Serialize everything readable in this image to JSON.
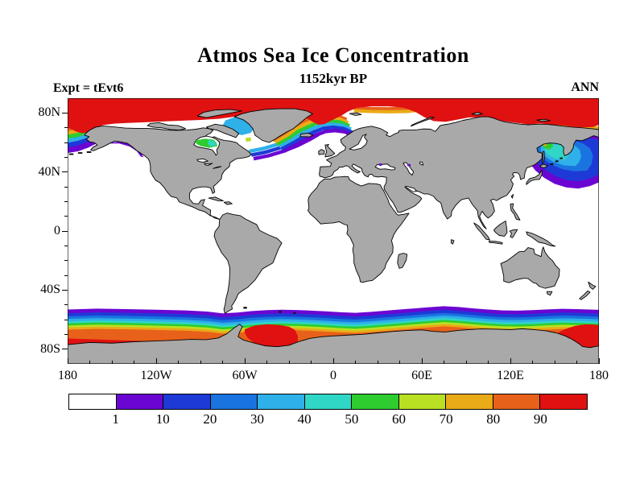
{
  "figure": {
    "title": "Atmos Sea Ice Concentration",
    "subtitle": "1152kyr BP",
    "experiment_label": "Expt = tEvt6",
    "season_label": "ANN"
  },
  "colors": {
    "land": "#a9a9a9",
    "ocean": "#ffffff",
    "coastline": "#000000",
    "text": "#000000"
  },
  "chart_data": {
    "type": "heatmap",
    "title": "Atmos Sea Ice Concentration",
    "subtitle": "1152kyr BP",
    "annotations": [
      "Expt = tEvt6",
      "ANN"
    ],
    "map": {
      "projection": "equirectangular",
      "lon_range": [
        -180,
        180
      ],
      "lat_range": [
        -90,
        90
      ]
    },
    "x_axis": {
      "tick_labels": [
        "180",
        "120W",
        "60W",
        "0",
        "60E",
        "120E",
        "180"
      ],
      "tick_lons": [
        -180,
        -120,
        -60,
        0,
        60,
        120,
        180
      ],
      "minor_tick_interval_deg": 15
    },
    "y_axis": {
      "tick_labels": [
        "80N",
        "40N",
        "0",
        "40S",
        "80S"
      ],
      "tick_lats": [
        80,
        40,
        0,
        -40,
        -80
      ],
      "minor_tick_interval_deg": 10
    },
    "colorbar": {
      "levels": [
        1,
        10,
        20,
        30,
        40,
        50,
        60,
        70,
        80,
        90
      ],
      "labels": [
        "1",
        "10",
        "20",
        "30",
        "40",
        "50",
        "60",
        "70",
        "80",
        "90"
      ],
      "colors": [
        "#ffffff",
        "#6b06d2",
        "#1e3ad6",
        "#1a74e0",
        "#2fb0e8",
        "#30d6c6",
        "#2ecc2e",
        "#b9e023",
        "#e9ab17",
        "#e8611a",
        "#e01111"
      ]
    },
    "features": [
      "Sea ice concentration above 90 over the Arctic Ocean",
      "Marginal ice bands in the Bering Sea, Labrador Sea, Nordic Seas and NW Pacific / Sea of Okhotsk",
      "Moderate-concentration patch over Hudson Bay",
      "Circumpolar Antarctic sea-ice belt with concentration increasing toward the coast",
      "High concentration (above 90) in the Weddell Sea and Ross Sea sectors"
    ]
  }
}
